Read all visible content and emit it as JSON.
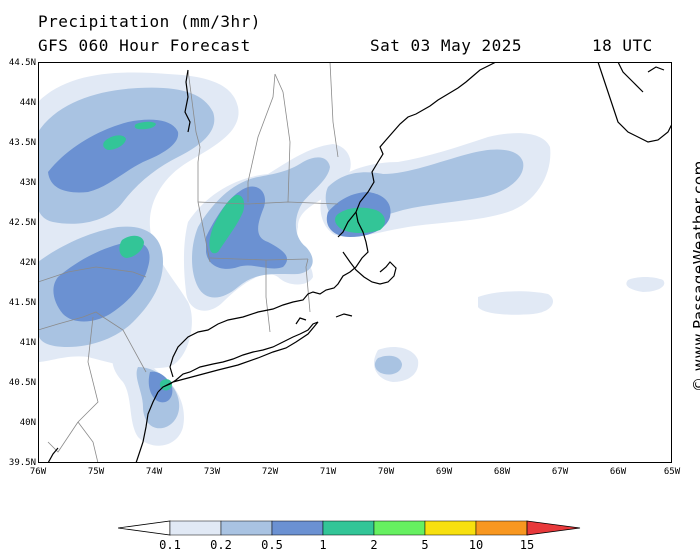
{
  "header": {
    "title": "Precipitation (mm/3hr)",
    "subtitle": "GFS 060 Hour Forecast",
    "valid_date": "Sat 03 May 2025",
    "valid_time": "18 UTC"
  },
  "map": {
    "lat_labels": [
      "44.5N",
      "44N",
      "43.5N",
      "43N",
      "42.5N",
      "42N",
      "41.5N",
      "41N",
      "40.5N",
      "40N",
      "39.5N"
    ],
    "lon_labels": [
      "76W",
      "75W",
      "74W",
      "73W",
      "72W",
      "71W",
      "70W",
      "69W",
      "68W",
      "67W",
      "66W",
      "65W"
    ],
    "lat_range": [
      39.5,
      44.5
    ],
    "lon_range": [
      -76,
      -65
    ]
  },
  "credit": "© www.PassageWeather.com",
  "legend": {
    "labels": [
      "0.1",
      "0.2",
      "0.5",
      "1",
      "2",
      "5",
      "10",
      "15"
    ],
    "colors": {
      "c0": "#ffffff",
      "c01": "#e1e9f5",
      "c02": "#a9c3e2",
      "c05": "#6b91d2",
      "c1": "#33c597",
      "c2": "#66f060",
      "c5": "#f7e00f",
      "c10": "#f89720",
      "c15": "#e8393b"
    }
  }
}
